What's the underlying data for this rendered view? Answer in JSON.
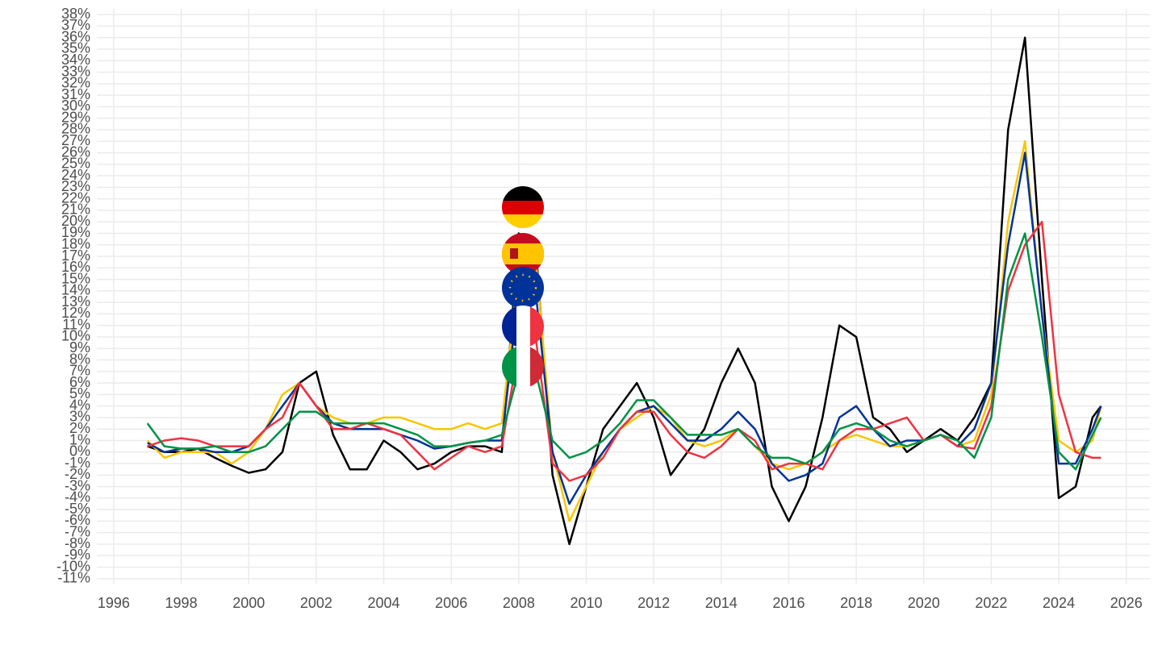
{
  "chart_data": {
    "type": "line",
    "x": [
      1997,
      1997.5,
      1998,
      1998.5,
      1999,
      1999.5,
      2000,
      2000.5,
      2001,
      2001.5,
      2002,
      2002.5,
      2003,
      2003.5,
      2004,
      2004.5,
      2005,
      2005.5,
      2006,
      2006.5,
      2007,
      2007.5,
      2008,
      2008.5,
      2009,
      2009.5,
      2010,
      2010.5,
      2011,
      2011.5,
      2012,
      2012.5,
      2013,
      2013.5,
      2014,
      2014.5,
      2015,
      2015.5,
      2016,
      2016.5,
      2017,
      2017.5,
      2018,
      2018.5,
      2019,
      2019.5,
      2020,
      2020.5,
      2021,
      2021.5,
      2022,
      2022.5,
      2023,
      2023.5,
      2024,
      2024.5,
      2025,
      2025.25
    ],
    "series": [
      {
        "color": "#000000",
        "values": [
          0.5,
          0,
          0,
          0.3,
          -0.5,
          -1.2,
          -1.8,
          -1.5,
          0,
          6,
          7,
          1.5,
          -1.5,
          -1.5,
          1,
          0,
          -1.5,
          -1,
          0,
          0.5,
          0.5,
          0,
          19,
          18,
          -2,
          -8,
          -3,
          2,
          4,
          6,
          3,
          -2,
          0,
          2,
          6,
          9,
          6,
          -3,
          -6,
          -3,
          3,
          11,
          10,
          3,
          2,
          0,
          1,
          2,
          1,
          3,
          6,
          28,
          36,
          15,
          -4,
          -3,
          3,
          4
        ]
      },
      {
        "color": "#f7c600",
        "values": [
          1,
          -0.5,
          0,
          0,
          0,
          -1,
          0,
          2,
          5,
          6,
          4,
          3,
          2.5,
          2.5,
          3,
          3,
          2.5,
          2,
          2,
          2.5,
          2,
          2.5,
          16,
          17,
          0,
          -6,
          -3,
          0,
          2,
          3,
          4,
          3,
          1,
          0.5,
          1,
          2,
          0.5,
          -1,
          -1.5,
          -1,
          0,
          1,
          1.5,
          1,
          0.5,
          0.5,
          1,
          1.5,
          0.5,
          1,
          5,
          20,
          27,
          12,
          1,
          0,
          1,
          4
        ]
      },
      {
        "color": "#003399",
        "values": [
          0.8,
          0,
          0.3,
          0.3,
          0,
          0,
          0.5,
          2,
          4,
          6,
          4,
          2.5,
          2,
          2,
          2,
          1.5,
          1,
          0.3,
          0.5,
          0.8,
          1,
          1,
          14,
          14,
          0,
          -4.5,
          -2,
          0,
          2,
          3.5,
          4,
          2.5,
          1,
          1,
          2,
          3.5,
          2,
          -1,
          -2.5,
          -2,
          -1,
          3,
          4,
          2,
          0.5,
          1,
          1,
          1.5,
          0.5,
          2,
          6,
          18,
          26,
          12,
          -1,
          -1,
          2,
          4
        ]
      },
      {
        "color": "#ef3340",
        "values": [
          0.5,
          1,
          1.2,
          1,
          0.5,
          0.5,
          0.5,
          2,
          3,
          6,
          4,
          2,
          2,
          2.5,
          2,
          1.5,
          0,
          -1.5,
          -0.5,
          0.5,
          0,
          0.5,
          9,
          10,
          -1,
          -2.5,
          -2,
          -0.5,
          2,
          3.5,
          3.5,
          1.5,
          0,
          -0.5,
          0.5,
          2,
          1,
          -1.5,
          -1,
          -1,
          -1.5,
          1,
          2,
          2,
          2.5,
          3,
          1,
          1.5,
          0.5,
          0.3,
          4,
          14,
          18,
          20,
          5,
          0,
          -0.5,
          -0.5
        ]
      },
      {
        "color": "#009246",
        "values": [
          2.5,
          0.5,
          0.3,
          0.3,
          0.5,
          0,
          0,
          0.5,
          2,
          3.5,
          3.5,
          2.5,
          2.5,
          2.5,
          2.5,
          2,
          1.5,
          0.5,
          0.5,
          0.8,
          1,
          1.5,
          7,
          7,
          1,
          -0.5,
          0,
          1,
          2.5,
          4.5,
          4.5,
          3,
          1.5,
          1.5,
          1.5,
          2,
          0.5,
          -0.5,
          -0.5,
          -1,
          0,
          2,
          2.5,
          2,
          1,
          0.5,
          1,
          1.5,
          1,
          -0.5,
          3,
          15,
          19,
          10,
          0,
          -1.5,
          1.5,
          3
        ]
      }
    ],
    "xlim": [
      1995.5,
      2026.7
    ],
    "xticks": [
      1996,
      1998,
      2000,
      2002,
      2004,
      2006,
      2008,
      2010,
      2012,
      2014,
      2016,
      2018,
      2020,
      2022,
      2024,
      2026
    ],
    "ylim": [
      -11.5,
      38.5
    ],
    "yticks": [
      {
        "value": 38,
        "label": "38%"
      },
      {
        "value": 37,
        "label": "37%"
      },
      {
        "value": 36,
        "label": "36%"
      },
      {
        "value": 35,
        "label": "35%"
      },
      {
        "value": 34,
        "label": "34%"
      },
      {
        "value": 33,
        "label": "33%"
      },
      {
        "value": 32,
        "label": "32%"
      },
      {
        "value": 31,
        "label": "31%"
      },
      {
        "value": 30,
        "label": "30%"
      },
      {
        "value": 29,
        "label": "29%"
      },
      {
        "value": 28,
        "label": "28%"
      },
      {
        "value": 27,
        "label": "27%"
      },
      {
        "value": 26,
        "label": "26%"
      },
      {
        "value": 25,
        "label": "25%"
      },
      {
        "value": 24,
        "label": "24%"
      },
      {
        "value": 23,
        "label": "23%"
      },
      {
        "value": 22,
        "label": "22%"
      },
      {
        "value": 21,
        "label": "21%"
      },
      {
        "value": 20,
        "label": "20%"
      },
      {
        "value": 19,
        "label": "19%"
      },
      {
        "value": 18,
        "label": "18%"
      },
      {
        "value": 17,
        "label": "17%"
      },
      {
        "value": 16,
        "label": "16%"
      },
      {
        "value": 15,
        "label": "15%"
      },
      {
        "value": 14,
        "label": "14%"
      },
      {
        "value": 13,
        "label": "13%"
      },
      {
        "value": 12,
        "label": "12%"
      },
      {
        "value": 11,
        "label": "11%"
      },
      {
        "value": 10,
        "label": "10%"
      },
      {
        "value": 9,
        "label": "9%"
      },
      {
        "value": 8,
        "label": "8%"
      },
      {
        "value": 7,
        "label": "7%"
      },
      {
        "value": 6,
        "label": "6%"
      },
      {
        "value": 5,
        "label": "5%"
      },
      {
        "value": 4,
        "label": "4%"
      },
      {
        "value": 3,
        "label": "3%"
      },
      {
        "value": 2,
        "label": "2%"
      },
      {
        "value": 1,
        "label": "1%"
      },
      {
        "value": 0,
        "label": "0%"
      },
      {
        "value": -1,
        "label": "-1%"
      },
      {
        "value": -2,
        "label": "-2%"
      },
      {
        "value": -3,
        "label": "-3%"
      },
      {
        "value": -4,
        "label": "-4%"
      },
      {
        "value": -5,
        "label": "-5%"
      },
      {
        "value": -6,
        "label": "-6%"
      },
      {
        "value": -7,
        "label": "-7%"
      },
      {
        "value": -8,
        "label": "-8%"
      },
      {
        "value": -9,
        "label": "-9%"
      },
      {
        "value": -10,
        "label": "-10%"
      },
      {
        "value": -11,
        "label": "-11%"
      }
    ],
    "grid": true
  }
}
